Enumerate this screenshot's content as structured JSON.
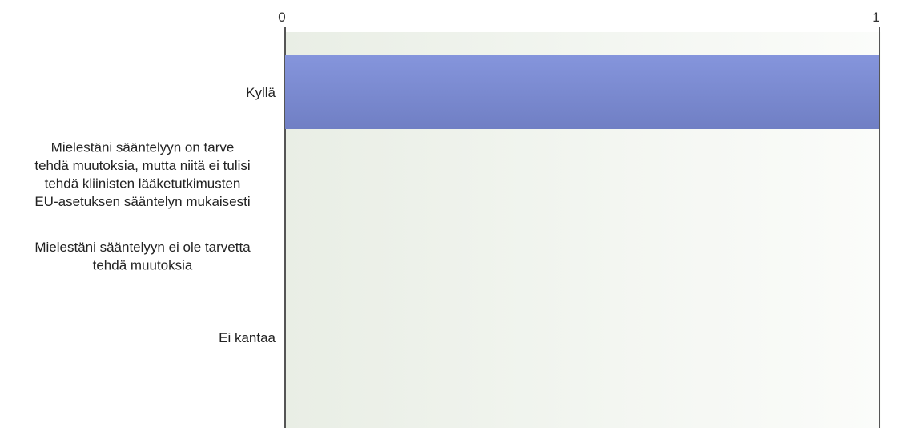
{
  "chart_data": {
    "type": "bar",
    "orientation": "horizontal",
    "categories": [
      [
        "Kyllä"
      ],
      [
        "Mielestäni sääntelyyn on tarve",
        "tehdä muutoksia, mutta niitä ei tulisi",
        "tehdä kliinisten lääketutkimusten",
        "EU-asetuksen sääntelyn mukaisesti"
      ],
      [
        "Mielestäni sääntelyyn ei ole tarvetta",
        "tehdä muutoksia"
      ],
      [
        "Ei kantaa"
      ]
    ],
    "values": [
      1,
      0,
      0,
      0
    ],
    "xlim": [
      0,
      1
    ],
    "x_ticks": [
      0,
      1
    ],
    "x_tick_labels": [
      "0",
      "1"
    ],
    "grid": true,
    "bar_color": "#7b8bd3"
  }
}
